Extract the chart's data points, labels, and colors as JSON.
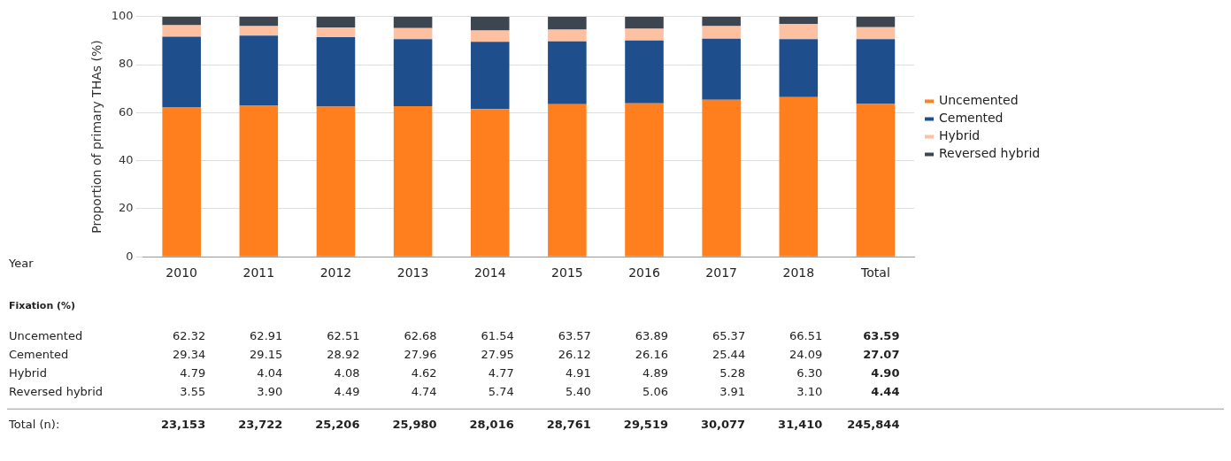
{
  "chart_data": {
    "type": "bar",
    "stacked": true,
    "ylabel": "Proportion of primary THAs (%)",
    "categories": [
      "2010",
      "2011",
      "2012",
      "2013",
      "2014",
      "2015",
      "2016",
      "2017",
      "2018",
      "Total"
    ],
    "series": [
      {
        "name": "Uncemented",
        "color": "#ff7f1e",
        "values": [
          62.32,
          62.91,
          62.51,
          62.68,
          61.54,
          63.57,
          63.89,
          65.37,
          66.51,
          63.59
        ],
        "value_labels": [
          "62.32",
          "62.91",
          "62.51",
          "62.68",
          "61.54",
          "63.57",
          "63.89",
          "65.37",
          "66.51",
          "63.59"
        ]
      },
      {
        "name": "Cemented",
        "color": "#1f4e8c",
        "values": [
          29.34,
          29.15,
          28.92,
          27.96,
          27.95,
          26.12,
          26.16,
          25.44,
          24.09,
          27.07
        ],
        "value_labels": [
          "29.34",
          "29.15",
          "28.92",
          "27.96",
          "27.95",
          "26.12",
          "26.16",
          "25.44",
          "24.09",
          "27.07"
        ]
      },
      {
        "name": "Hybrid",
        "color": "#fdc0a0",
        "values": [
          4.79,
          4.04,
          4.08,
          4.62,
          4.77,
          4.91,
          4.89,
          5.28,
          6.3,
          4.9
        ],
        "value_labels": [
          "4.79",
          "4.04",
          "4.08",
          "4.62",
          "4.77",
          "4.91",
          "4.89",
          "5.28",
          "6.30",
          "4.90"
        ]
      },
      {
        "name": "Reversed hybrid",
        "color": "#3d4650",
        "values": [
          3.55,
          3.9,
          4.49,
          4.74,
          5.74,
          5.4,
          5.06,
          3.91,
          3.1,
          4.44
        ],
        "value_labels": [
          "3.55",
          "3.90",
          "4.49",
          "4.74",
          "5.74",
          "5.40",
          "5.06",
          "3.91",
          "3.10",
          "4.44"
        ]
      }
    ],
    "ylim": [
      0,
      100
    ],
    "yticks": [
      0,
      20,
      40,
      60,
      80,
      100
    ],
    "grid": "y",
    "legend": "right",
    "annotations": [
      "Year",
      "Fixation (%)",
      "Total (n):",
      "23,153",
      "23,722",
      "25,206",
      "25,980",
      "28,016",
      "28,761",
      "29,519",
      "30,077",
      "31,410",
      "245,844"
    ]
  }
}
